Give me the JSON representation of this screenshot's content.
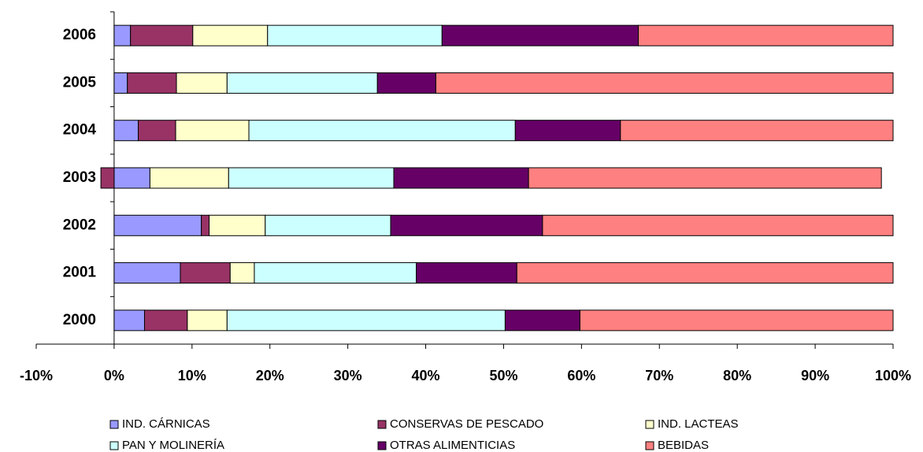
{
  "chart_data": {
    "type": "stacked_barh",
    "categories": [
      "2000",
      "2001",
      "2002",
      "2003",
      "2004",
      "2005",
      "2006"
    ],
    "series": [
      {
        "name": "IND. CÁRNICAS",
        "color": "#9999ff",
        "values": [
          3.9,
          8.5,
          11.2,
          4.6,
          3.1,
          1.7,
          2.1
        ]
      },
      {
        "name": "CONSERVAS DE PESCADO",
        "color": "#993366",
        "values": [
          5.5,
          6.4,
          1.0,
          -1.7,
          4.8,
          6.3,
          8.0
        ]
      },
      {
        "name": "IND. LACTEAS",
        "color": "#ffffcc",
        "values": [
          5.1,
          3.1,
          7.2,
          10.1,
          9.4,
          6.5,
          9.6
        ]
      },
      {
        "name": "PAN Y MOLINERÍA",
        "color": "#ccffff",
        "values": [
          35.7,
          20.8,
          16.1,
          21.2,
          34.2,
          19.3,
          22.4
        ]
      },
      {
        "name": "OTRAS ALIMENTICIAS",
        "color": "#660066",
        "values": [
          9.6,
          12.9,
          19.5,
          17.3,
          13.5,
          7.5,
          25.2
        ]
      },
      {
        "name": "BEBIDAS",
        "color": "#ff8080",
        "values": [
          40.2,
          48.3,
          45.0,
          45.3,
          35.0,
          58.7,
          32.7
        ]
      }
    ],
    "xlim": [
      -10,
      100
    ],
    "xticks": [
      {
        "value": -10,
        "label": "-10%"
      },
      {
        "value": 0,
        "label": "0%"
      },
      {
        "value": 10,
        "label": "10%"
      },
      {
        "value": 20,
        "label": "20%"
      },
      {
        "value": 30,
        "label": "30%"
      },
      {
        "value": 40,
        "label": "40%"
      },
      {
        "value": 50,
        "label": "50%"
      },
      {
        "value": 60,
        "label": "60%"
      },
      {
        "value": 70,
        "label": "70%"
      },
      {
        "value": 80,
        "label": "80%"
      },
      {
        "value": 90,
        "label": "90%"
      },
      {
        "value": 100,
        "label": "100%"
      }
    ],
    "legend": "bottom"
  }
}
